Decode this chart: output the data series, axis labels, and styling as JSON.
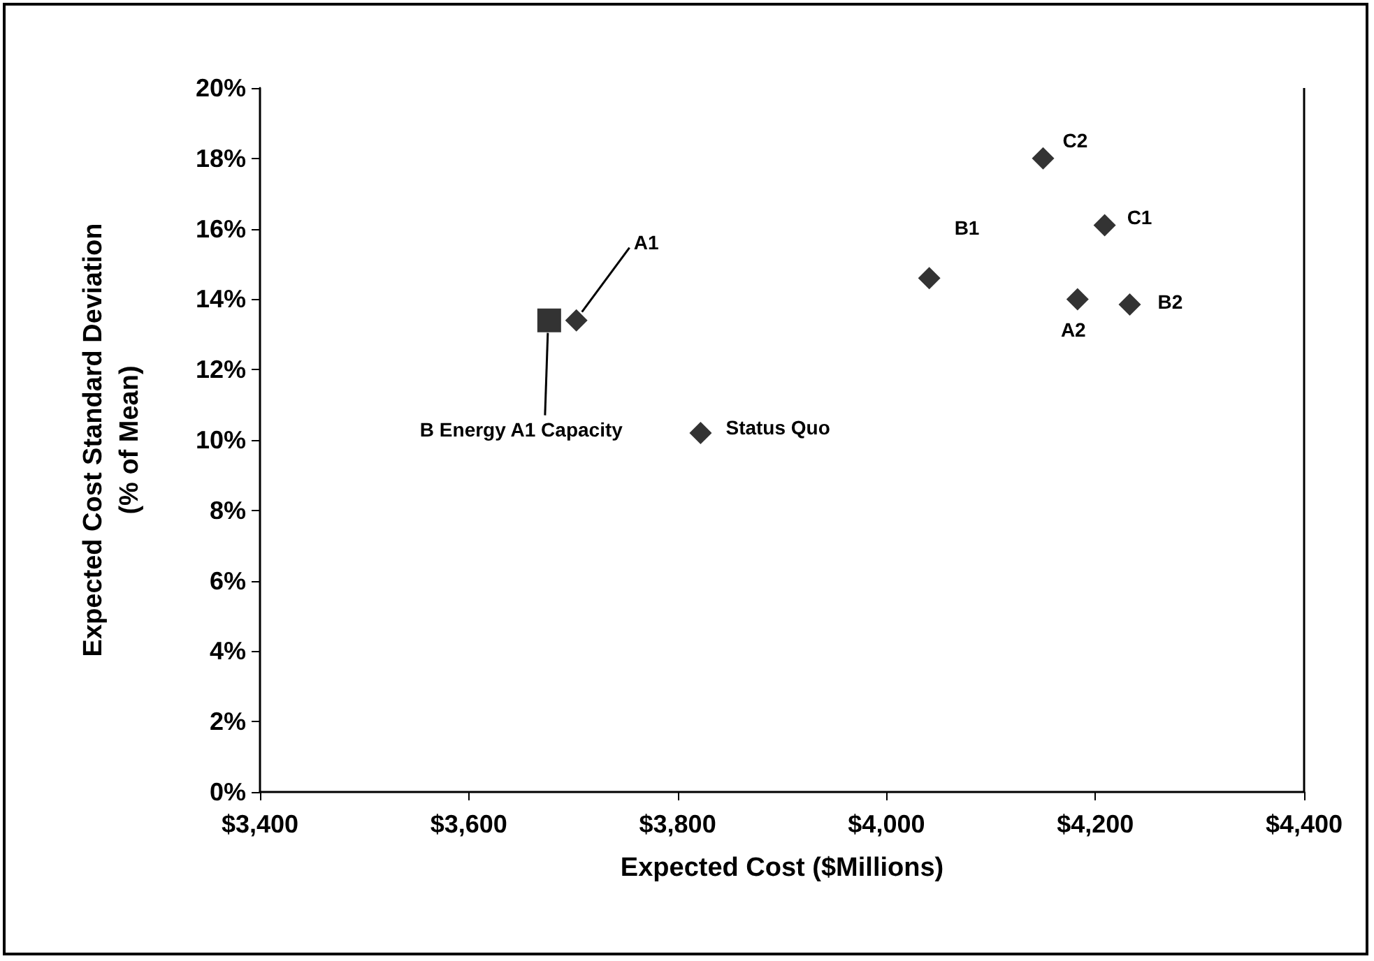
{
  "chart_data": {
    "type": "scatter",
    "xlabel": "Expected Cost ($Millions)",
    "ylabel": "Expected Cost Standard Deviation\n(% of Mean)",
    "series": [
      {
        "marker": "diamond",
        "color": "#000000",
        "x": [
          3703,
          3822,
          4150,
          4209,
          4041,
          4183,
          4233
        ],
        "values": [
          13.4,
          10.2,
          18.0,
          16.1,
          14.6,
          14.0,
          13.85
        ]
      },
      {
        "marker": "square",
        "color": "#000000",
        "x": [
          3677
        ],
        "values": [
          13.4
        ]
      }
    ],
    "annotations": [
      {
        "text": "A1",
        "x": 3703,
        "y": 13.4
      },
      {
        "text": "B Energy A1 Capacity",
        "x": 3677,
        "y": 13.4
      },
      {
        "text": "Status Quo",
        "x": 3822,
        "y": 10.2
      },
      {
        "text": "C2",
        "x": 4150,
        "y": 18.0
      },
      {
        "text": "C1",
        "x": 4209,
        "y": 16.1
      },
      {
        "text": "B1",
        "x": 4041,
        "y": 14.6
      },
      {
        "text": "A2",
        "x": 4183,
        "y": 14.0
      },
      {
        "text": "B2",
        "x": 4233,
        "y": 13.85
      }
    ],
    "xlim": [
      3400,
      4400
    ],
    "xticks": [
      {
        "value": 3400,
        "label": "$3,400"
      },
      {
        "value": 3600,
        "label": "$3,600"
      },
      {
        "value": 3800,
        "label": "$3,800"
      },
      {
        "value": 4000,
        "label": "$4,000"
      },
      {
        "value": 4200,
        "label": "$4,200"
      },
      {
        "value": 4400,
        "label": "$4,400"
      }
    ],
    "ylim": [
      0,
      20
    ],
    "yticks": [
      {
        "value": 0,
        "label": "0%"
      },
      {
        "value": 2,
        "label": "2%"
      },
      {
        "value": 4,
        "label": "4%"
      },
      {
        "value": 6,
        "label": "6%"
      },
      {
        "value": 8,
        "label": "8%"
      },
      {
        "value": 10,
        "label": "10%"
      },
      {
        "value": 12,
        "label": "12%"
      },
      {
        "value": 14,
        "label": "14%"
      },
      {
        "value": 16,
        "label": "16%"
      },
      {
        "value": 18,
        "label": "18%"
      },
      {
        "value": 20,
        "label": "20%"
      }
    ],
    "grid": false
  }
}
